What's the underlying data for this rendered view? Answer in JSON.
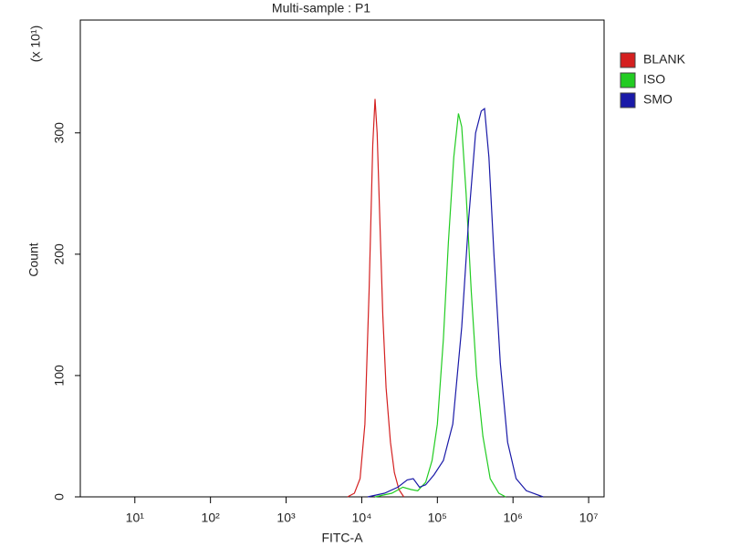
{
  "chart_data": {
    "type": "line",
    "title": "Multi-sample : P1",
    "x_label": "FITC-A",
    "y_label": "Count",
    "y_multiplier": "(x 10¹)",
    "xscale": "log",
    "xlim": [
      1.9,
      16000000
    ],
    "xticks": [
      {
        "value": 10,
        "label": "10¹"
      },
      {
        "value": 100,
        "label": "10²"
      },
      {
        "value": 1000,
        "label": "10³"
      },
      {
        "value": 10000,
        "label": "10⁴"
      },
      {
        "value": 100000,
        "label": "10⁵"
      },
      {
        "value": 1000000,
        "label": "10⁶"
      },
      {
        "value": 10000000,
        "label": "10⁷"
      }
    ],
    "ylim": [
      0,
      393
    ],
    "yticks": [
      0,
      100,
      200,
      300
    ],
    "legend": "right",
    "series": [
      {
        "name": "BLANK",
        "color": "#d42020",
        "x": [
          6500,
          8000,
          9500,
          11000,
          12500,
          14000,
          15000,
          16000,
          17500,
          19000,
          21000,
          24000,
          27000,
          31000,
          36000
        ],
        "values": [
          0,
          3,
          15,
          60,
          170,
          290,
          328,
          300,
          220,
          150,
          90,
          45,
          20,
          6,
          0
        ]
      },
      {
        "name": "ISO",
        "color": "#22cc22",
        "x": [
          15000,
          25000,
          35000,
          45000,
          55000,
          70000,
          85000,
          100000,
          120000,
          140000,
          165000,
          190000,
          210000,
          240000,
          280000,
          330000,
          400000,
          500000,
          650000,
          800000
        ],
        "values": [
          0,
          3,
          8,
          6,
          5,
          12,
          30,
          60,
          130,
          210,
          280,
          316,
          305,
          250,
          170,
          100,
          50,
          15,
          3,
          0
        ]
      },
      {
        "name": "SMO",
        "color": "#1a1aa8",
        "x": [
          12000,
          20000,
          30000,
          40000,
          48000,
          58000,
          70000,
          90000,
          120000,
          160000,
          210000,
          260000,
          320000,
          380000,
          420000,
          480000,
          560000,
          680000,
          850000,
          1100000,
          1500000,
          2500000
        ],
        "values": [
          0,
          3,
          8,
          14,
          15,
          8,
          10,
          18,
          30,
          60,
          140,
          230,
          300,
          318,
          320,
          280,
          200,
          110,
          45,
          15,
          5,
          0
        ]
      }
    ]
  }
}
